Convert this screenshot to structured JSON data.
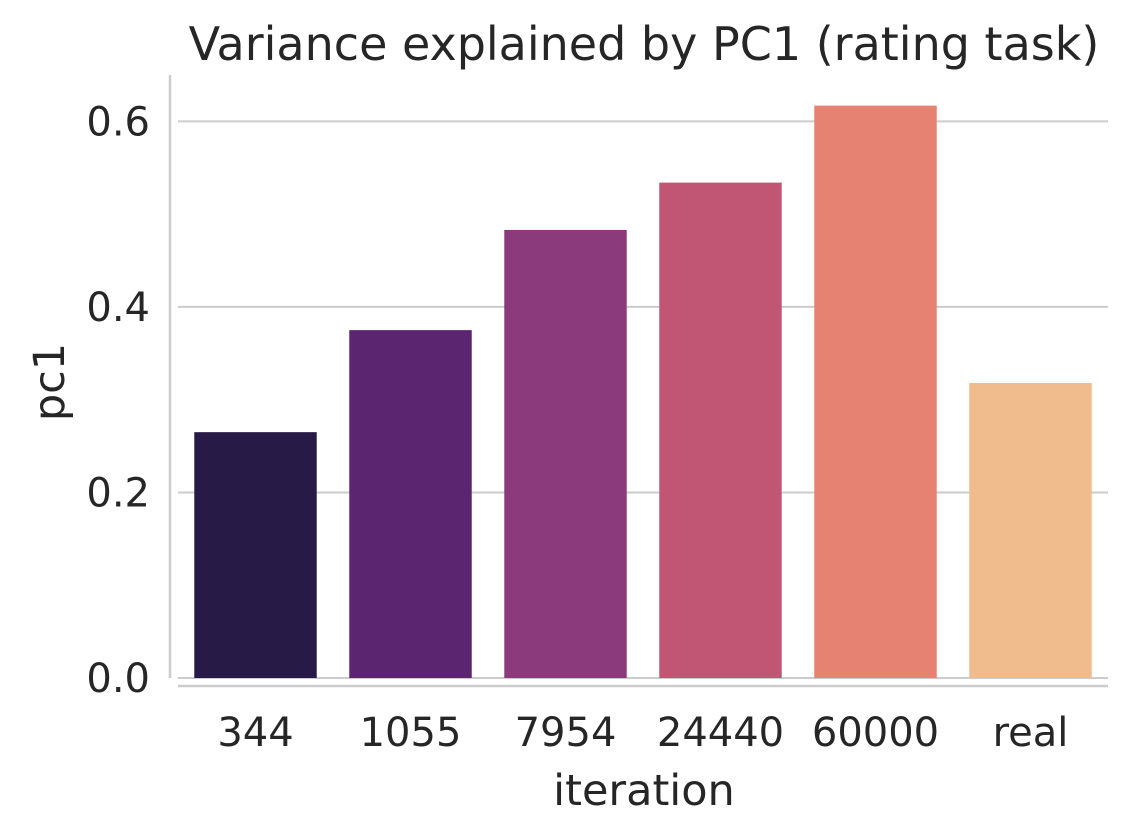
{
  "chart_data": {
    "type": "bar",
    "title": "Variance explained by PC1 (rating task)",
    "xlabel": "iteration",
    "ylabel": "pc1",
    "categories": [
      "344",
      "1055",
      "7954",
      "24440",
      "60000",
      "real"
    ],
    "values": [
      0.265,
      0.375,
      0.483,
      0.534,
      0.617,
      0.318
    ],
    "colors": [
      "#271a46",
      "#5c2570",
      "#8b3a7b",
      "#c15674",
      "#e68271",
      "#f0bb8d"
    ],
    "ylim": [
      0,
      0.65
    ],
    "yticks": [
      0.0,
      0.2,
      0.4,
      0.6
    ],
    "ytick_labels": [
      "0.0",
      "0.2",
      "0.4",
      "0.6"
    ],
    "grid": "horizontal",
    "legend": "none"
  }
}
